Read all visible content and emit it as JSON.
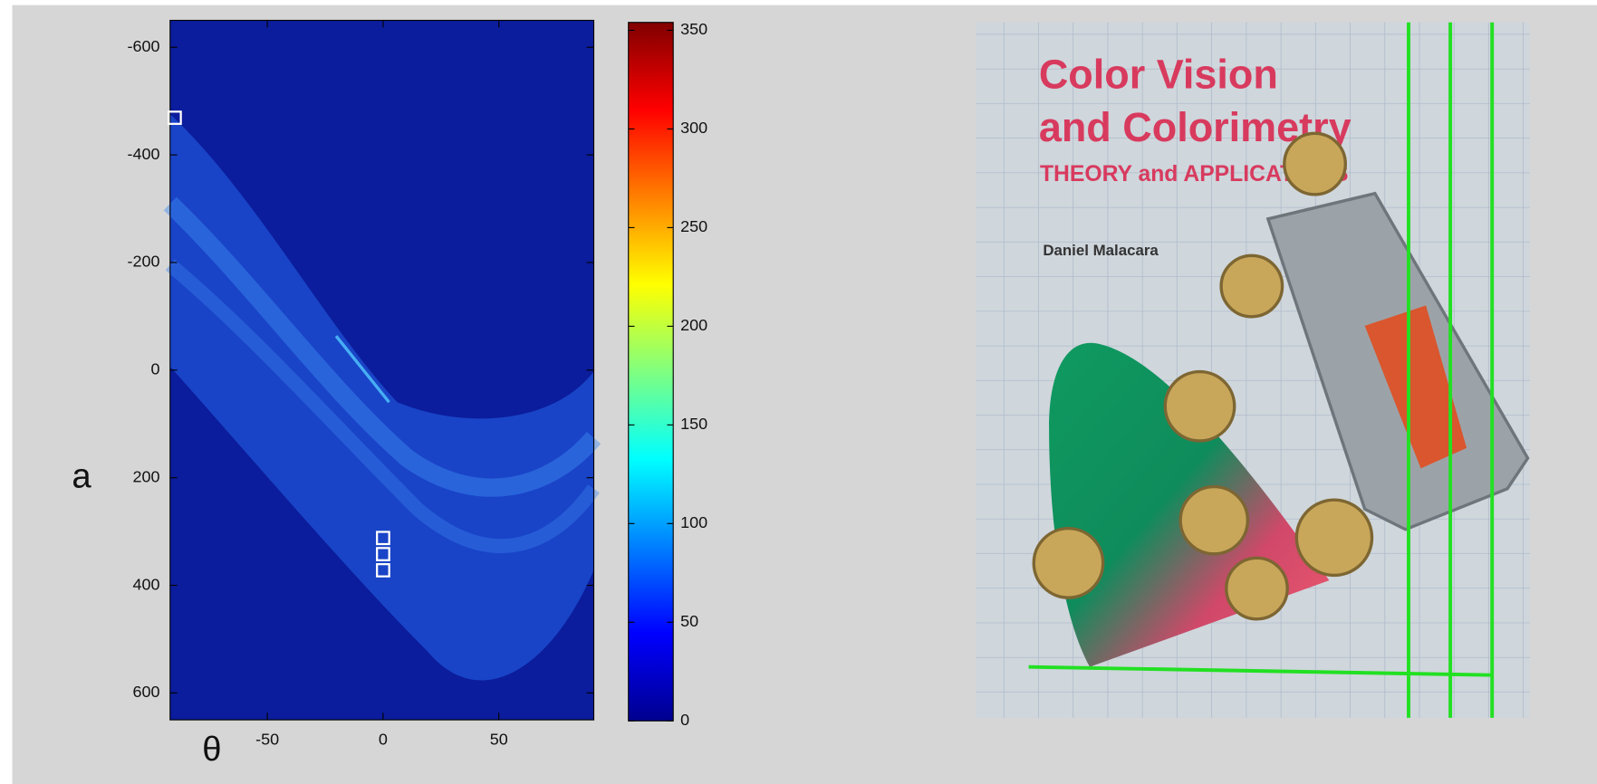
{
  "chart_data": {
    "type": "heatmap",
    "xlabel": "θ",
    "ylabel": "a",
    "xlim": [
      -92,
      91
    ],
    "ylim": [
      -650,
      650
    ],
    "y_reversed": true,
    "xticks": [
      -50,
      0,
      50
    ],
    "yticks": [
      -600,
      -400,
      -200,
      0,
      200,
      400,
      600
    ],
    "clim": [
      0,
      354
    ],
    "cticks": [
      0,
      50,
      100,
      150,
      200,
      250,
      300,
      350
    ],
    "colormap": "jet",
    "peaks": {
      "x": [
        -90,
        0,
        0,
        0
      ],
      "y": [
        -469,
        312,
        342,
        372
      ],
      "color": "#ffffff"
    }
  },
  "photo": {
    "title_lines": [
      "Color Vision",
      "and Colorimetry"
    ],
    "subtitle": "THEORY and APPLICATIONS",
    "author": "Daniel Malacara"
  }
}
